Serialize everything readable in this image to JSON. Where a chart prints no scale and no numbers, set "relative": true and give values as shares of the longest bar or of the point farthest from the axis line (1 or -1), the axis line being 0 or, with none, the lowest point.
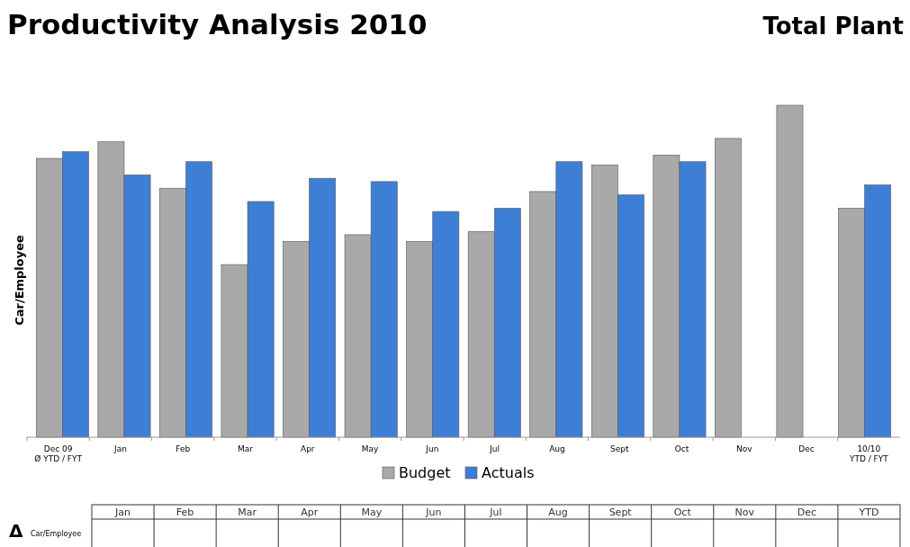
{
  "chart_data": {
    "type": "bar",
    "title": "Productivity Analysis 2010",
    "subtitle": "Total Plant",
    "ylabel": "Car/Employee",
    "relative": true,
    "legend": "bottom",
    "categories": [
      "Dec 09\nØ YTD / FYT",
      "Jan",
      "Feb",
      "Mar",
      "Apr",
      "May",
      "Jun",
      "Jul",
      "Aug",
      "Sept",
      "Oct",
      "Nov",
      "Dec",
      "10/10\nYTD / FYT"
    ],
    "series": [
      {
        "name": "Budget",
        "color": "#a9a9a9",
        "values": [
          0.84,
          0.89,
          0.75,
          0.52,
          0.59,
          0.61,
          0.59,
          0.62,
          0.74,
          0.82,
          0.85,
          0.9,
          1,
          0.69
        ]
      },
      {
        "name": "Actuals",
        "color": "#3e7fd6",
        "values": [
          0.86,
          0.79,
          0.83,
          0.71,
          0.78,
          0.77,
          0.68,
          0.69,
          0.83,
          0.73,
          0.83,
          null,
          null,
          0.76
        ]
      }
    ],
    "annotations": [
      "Δ",
      "Car/Employee",
      "Jan",
      "Feb",
      "Mar",
      "Apr",
      "May",
      "Jun",
      "Jul",
      "Aug",
      "Sept",
      "Oct",
      "Nov",
      "Dec",
      "YTD"
    ]
  }
}
